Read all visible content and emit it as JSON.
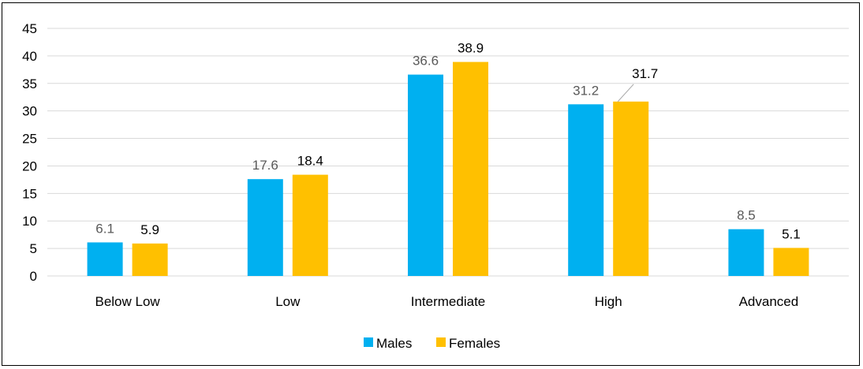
{
  "chart_data": {
    "type": "bar",
    "categories": [
      "Below Low",
      "Low",
      "Intermediate",
      "High",
      "Advanced"
    ],
    "series": [
      {
        "name": "Males",
        "values": [
          6.1,
          17.6,
          36.6,
          31.2,
          8.5
        ],
        "color": "#00B0F0",
        "label_color": "#595959"
      },
      {
        "name": "Females",
        "values": [
          5.9,
          18.4,
          38.9,
          31.7,
          5.1
        ],
        "color": "#FFC000",
        "label_color": "#000000"
      }
    ],
    "ylim": [
      0,
      45
    ],
    "yticks": [
      0,
      5,
      10,
      15,
      20,
      25,
      30,
      35,
      40,
      45
    ],
    "grid": true,
    "legend_position": "bottom",
    "title": "",
    "xlabel": "",
    "ylabel": ""
  }
}
